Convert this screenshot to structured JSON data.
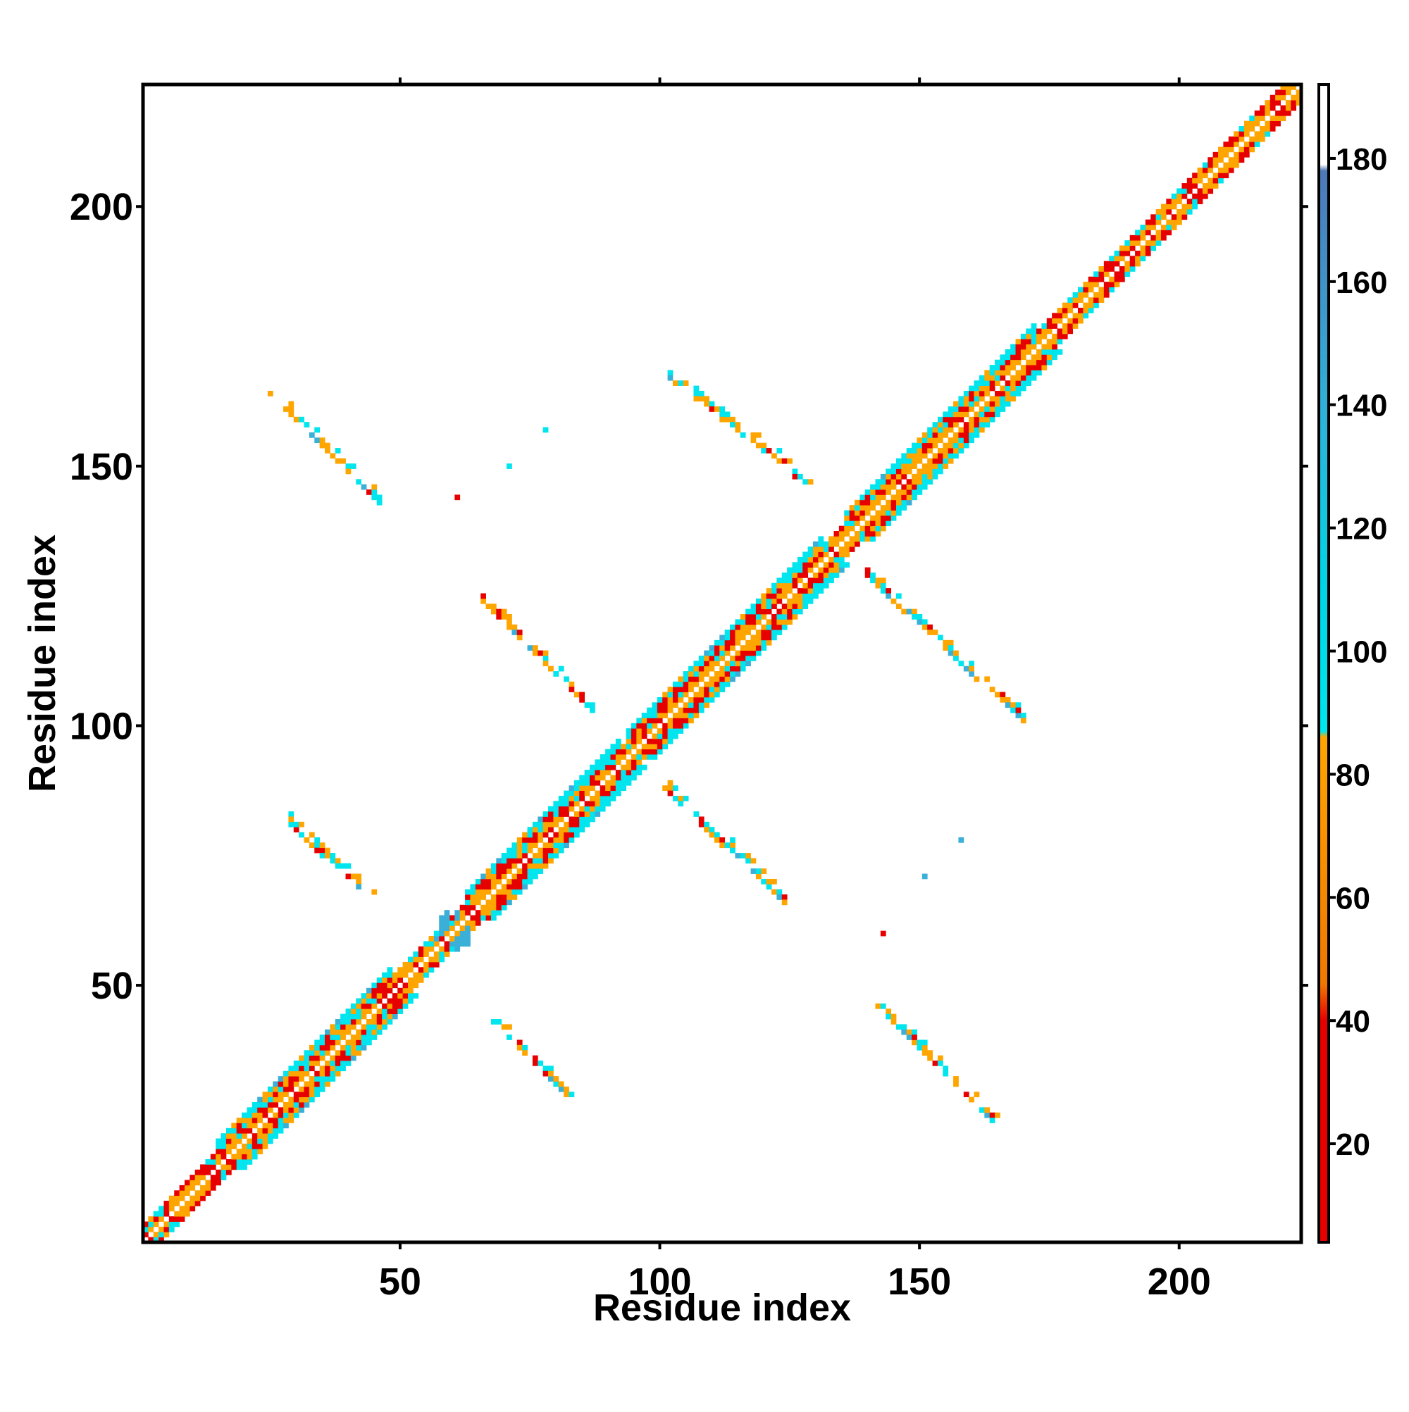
{
  "chart_data": {
    "type": "heatmap",
    "title": "",
    "xlabel": "Residue index",
    "ylabel": "Residue index",
    "xlim": [
      0.5,
      223.5
    ],
    "ylim": [
      0.5,
      223.5
    ],
    "x_ticks": [
      50,
      100,
      150,
      200
    ],
    "y_ticks": [
      50,
      100,
      150,
      200
    ],
    "grid": false,
    "colorbar": {
      "range": [
        4,
        192
      ],
      "ticks": [
        20,
        40,
        60,
        80,
        100,
        120,
        140,
        160,
        180
      ],
      "stops": [
        {
          "value": 4,
          "color": "#e60000"
        },
        {
          "value": 40,
          "color": "#e60000"
        },
        {
          "value": 46,
          "color": "#f07800"
        },
        {
          "value": 86,
          "color": "#ffa500"
        },
        {
          "value": 87,
          "color": "#00e5ee"
        },
        {
          "value": 110,
          "color": "#00d5e5"
        },
        {
          "value": 140,
          "color": "#30b0d8"
        },
        {
          "value": 178,
          "color": "#4f78b8"
        },
        {
          "value": 179,
          "color": "#ffffff"
        },
        {
          "value": 192,
          "color": "#ffffff"
        }
      ]
    },
    "value_colors": {
      "low": "#e60000",
      "mid": "#ffa500",
      "high": "#00e5ee",
      "very_high": "#3ab0d8"
    },
    "diagonal_band": {
      "from": 1,
      "to": 223,
      "wide_segments": [
        [
          15,
          48
        ],
        [
          63,
          92
        ],
        [
          94,
          131
        ],
        [
          136,
          172
        ]
      ],
      "narrow_segments": [
        [
          1,
          14
        ],
        [
          49,
          62
        ],
        [
          173,
          223
        ]
      ]
    },
    "contact_strands": [
      {
        "from": [
          25,
          164
        ],
        "to": [
          46,
          143
        ]
      },
      {
        "from": [
          28,
          82
        ],
        "to": [
          44,
          67
        ]
      },
      {
        "from": [
          66,
          124
        ],
        "to": [
          87,
          103
        ]
      },
      {
        "from": [
          68,
          43
        ],
        "to": [
          82,
          29
        ]
      },
      {
        "from": [
          101,
          168
        ],
        "to": [
          129,
          146
        ]
      },
      {
        "from": [
          101,
          88
        ],
        "to": [
          124,
          66
        ]
      },
      {
        "from": [
          140,
          129
        ],
        "to": [
          170,
          101
        ]
      },
      {
        "from": [
          142,
          46
        ],
        "to": [
          164,
          24
        ]
      }
    ],
    "isolated_contacts": [
      {
        "x": 61,
        "y": 144,
        "level": "low"
      },
      {
        "x": 71,
        "y": 150,
        "level": "high"
      },
      {
        "x": 78,
        "y": 157,
        "level": "high"
      },
      {
        "x": 143,
        "y": 60,
        "level": "low"
      },
      {
        "x": 151,
        "y": 71,
        "level": "very_high"
      },
      {
        "x": 158,
        "y": 78,
        "level": "very_high"
      }
    ]
  }
}
